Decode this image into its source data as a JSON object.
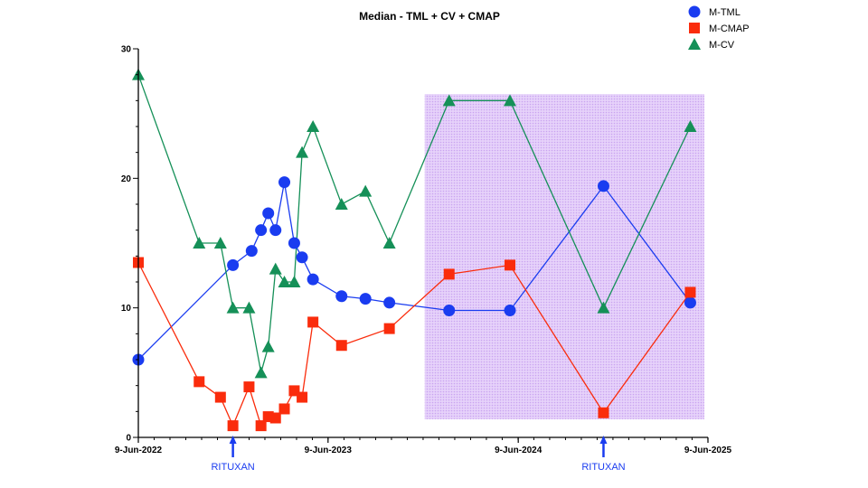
{
  "chart_data": {
    "type": "line",
    "title": "Median - TML + CV + CMAP",
    "xlabel": "",
    "ylabel": "",
    "ylim": [
      0,
      30
    ],
    "yticks": [
      0,
      10,
      20,
      30
    ],
    "xlim": [
      "2022-06-09",
      "2025-06-09"
    ],
    "xticks": [
      {
        "date": "2022-06-09",
        "label": "9-Jun-2022"
      },
      {
        "date": "2023-06-09",
        "label": "9-Jun-2023"
      },
      {
        "date": "2024-06-09",
        "label": "9-Jun-2024"
      },
      {
        "date": "2025-06-09",
        "label": "9-Jun-2025"
      }
    ],
    "series": [
      {
        "name": "M-TML",
        "color": "#1a3cf0",
        "marker": "circle",
        "points": [
          [
            "2022-06-09",
            6.0
          ],
          [
            "2022-12-08",
            13.3
          ],
          [
            "2023-01-13",
            14.4
          ],
          [
            "2023-01-31",
            16.0
          ],
          [
            "2023-02-14",
            17.3
          ],
          [
            "2023-02-28",
            16.0
          ],
          [
            "2023-03-17",
            19.7
          ],
          [
            "2023-04-05",
            15.0
          ],
          [
            "2023-04-20",
            13.9
          ],
          [
            "2023-05-11",
            12.2
          ],
          [
            "2023-07-05",
            10.9
          ],
          [
            "2023-08-20",
            10.7
          ],
          [
            "2023-10-05",
            10.4
          ],
          [
            "2024-01-28",
            9.8
          ],
          [
            "2024-05-24",
            9.8
          ],
          [
            "2024-11-20",
            19.4
          ],
          [
            "2025-05-06",
            10.4
          ]
        ]
      },
      {
        "name": "M-CMAP",
        "color": "#fa2c0c",
        "marker": "square",
        "points": [
          [
            "2022-06-09",
            13.5
          ],
          [
            "2022-10-04",
            4.3
          ],
          [
            "2022-11-14",
            3.1
          ],
          [
            "2022-12-08",
            0.9
          ],
          [
            "2023-01-08",
            3.9
          ],
          [
            "2023-01-31",
            0.9
          ],
          [
            "2023-02-14",
            1.6
          ],
          [
            "2023-02-28",
            1.5
          ],
          [
            "2023-03-17",
            2.2
          ],
          [
            "2023-04-05",
            3.6
          ],
          [
            "2023-04-20",
            3.1
          ],
          [
            "2023-05-11",
            8.9
          ],
          [
            "2023-07-05",
            7.1
          ],
          [
            "2023-10-05",
            8.4
          ],
          [
            "2024-01-28",
            12.6
          ],
          [
            "2024-05-24",
            13.3
          ],
          [
            "2024-11-20",
            1.9
          ],
          [
            "2025-05-06",
            11.2
          ]
        ]
      },
      {
        "name": "M-CV",
        "color": "#159058",
        "marker": "triangle",
        "points": [
          [
            "2022-06-09",
            28.0
          ],
          [
            "2022-10-04",
            15.0
          ],
          [
            "2022-11-14",
            15.0
          ],
          [
            "2022-12-08",
            10.0
          ],
          [
            "2023-01-08",
            10.0
          ],
          [
            "2023-01-31",
            5.0
          ],
          [
            "2023-02-14",
            7.0
          ],
          [
            "2023-02-28",
            13.0
          ],
          [
            "2023-03-17",
            12.0
          ],
          [
            "2023-04-05",
            12.0
          ],
          [
            "2023-04-20",
            22.0
          ],
          [
            "2023-05-11",
            24.0
          ],
          [
            "2023-07-05",
            18.0
          ],
          [
            "2023-08-20",
            19.0
          ],
          [
            "2023-10-05",
            15.0
          ],
          [
            "2024-01-28",
            26.0
          ],
          [
            "2024-05-24",
            26.0
          ],
          [
            "2024-11-20",
            10.0
          ],
          [
            "2025-05-06",
            24.0
          ]
        ]
      }
    ],
    "shaded_region": {
      "x_start": "2023-12-12",
      "x_end": "2025-06-02",
      "y_start": 1.4,
      "y_end": 26.5,
      "color": "#d7b8f5"
    },
    "annotations": [
      {
        "label": "RITUXAN",
        "date": "2022-12-08",
        "color": "#1a3cf0"
      },
      {
        "label": "RITUXAN",
        "date": "2024-11-20",
        "color": "#1a3cf0"
      }
    ],
    "legend_position": "top-right"
  }
}
